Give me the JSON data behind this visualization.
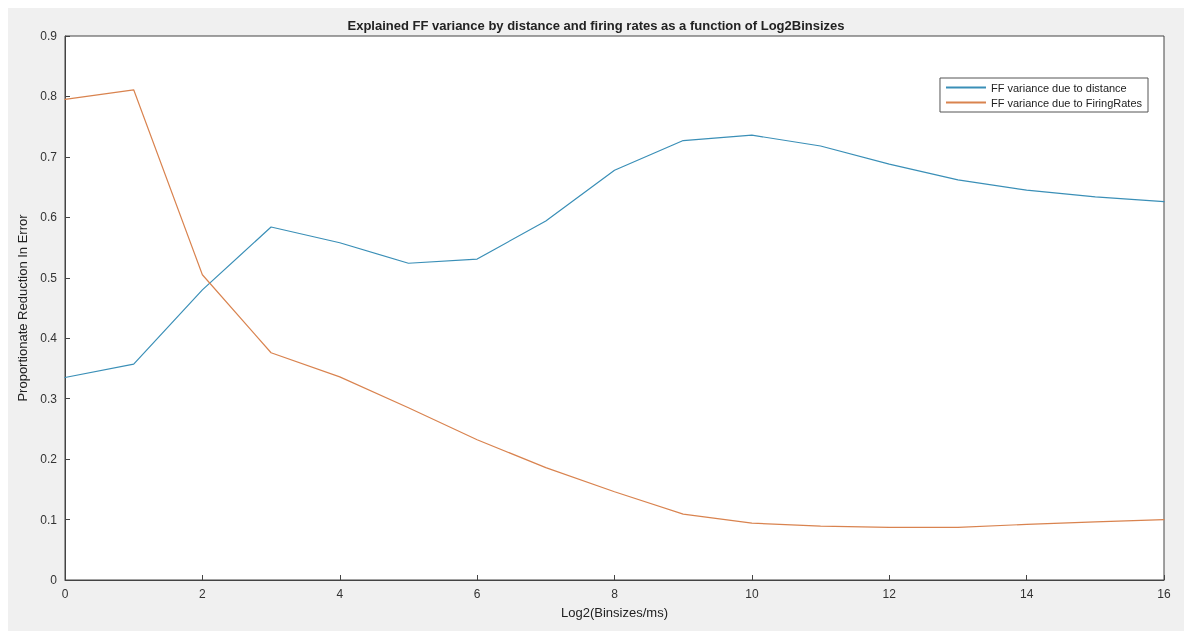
{
  "chart_data": {
    "type": "line",
    "title": "Explained FF variance by distance and firing rates as a function of Log2Binsizes",
    "xlabel": "Log2(Binsizes/ms)",
    "ylabel": "Proportionate Reduction In Error",
    "x": [
      0,
      1,
      2,
      3,
      4,
      5,
      6,
      7,
      8,
      9,
      10,
      11,
      12,
      13,
      14,
      15,
      16
    ],
    "series": [
      {
        "name": "FF variance due to distance",
        "color": "#3a8fb7",
        "values": [
          0.335,
          0.357,
          0.48,
          0.584,
          0.558,
          0.524,
          0.531,
          0.594,
          0.678,
          0.727,
          0.736,
          0.718,
          0.688,
          0.662,
          0.645,
          0.634,
          0.626
        ]
      },
      {
        "name": "FF variance due to FiringRates",
        "color": "#d9834f",
        "values": [
          0.795,
          0.811,
          0.505,
          0.376,
          0.336,
          0.285,
          0.232,
          0.186,
          0.146,
          0.109,
          0.094,
          0.089,
          0.087,
          0.087,
          0.092,
          0.096,
          0.1
        ]
      }
    ],
    "xlim": [
      0,
      16
    ],
    "xticks": [
      0,
      2,
      4,
      6,
      8,
      10,
      12,
      14,
      16
    ],
    "ylim": [
      0,
      0.9
    ],
    "yticks": [
      0,
      0.1,
      0.2,
      0.3,
      0.4,
      0.5,
      0.6,
      0.7,
      0.8,
      0.9
    ],
    "grid": false,
    "legend": "top right",
    "marker": "none",
    "line_style": "solid"
  }
}
